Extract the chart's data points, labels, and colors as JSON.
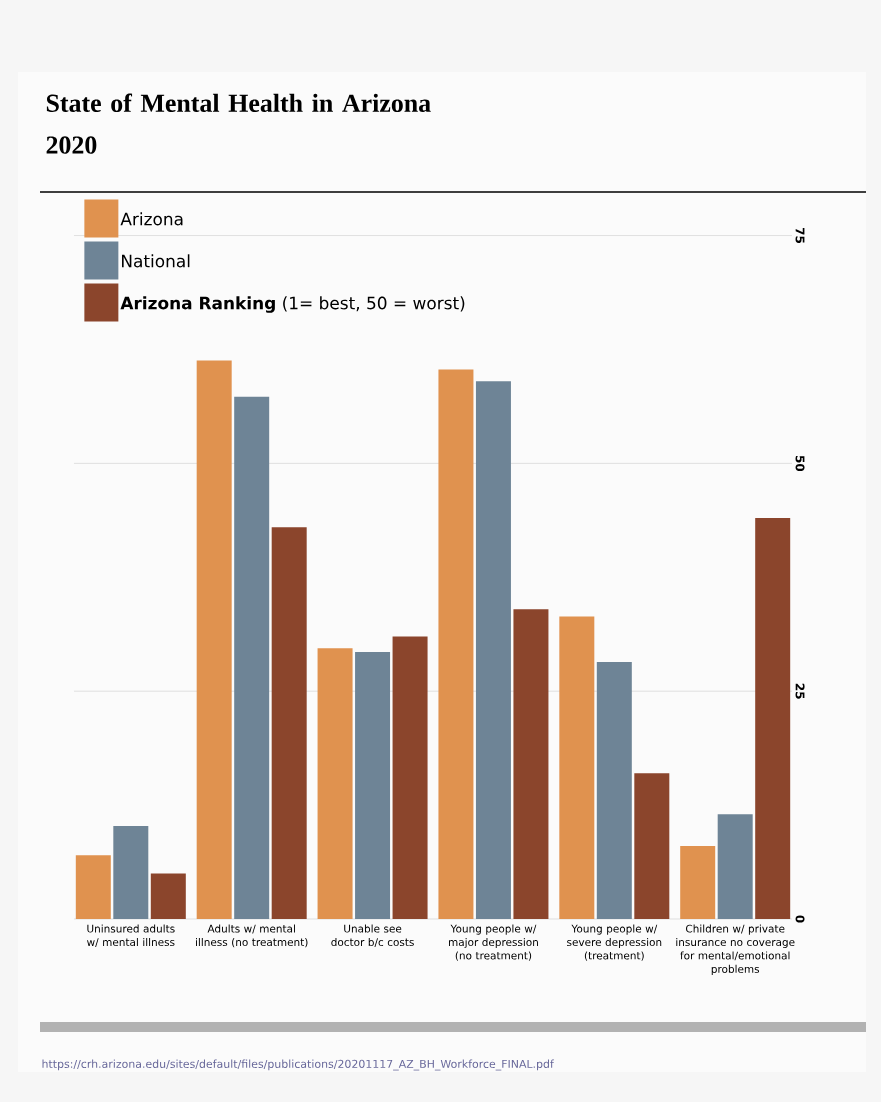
{
  "chart_data": {
    "type": "bar",
    "title": "State of Mental Health in Arizona 2020",
    "categories": [
      "Uninsured adults w/ mental illness",
      "Adults w/ mental illness (no treatment)",
      "Unable see doctor b/c costs",
      "Young people w/ major depression (no treatment)",
      "Young people w/ severe depression (treatment)",
      "Children w/ private insurance no coverage for mental/emotional problems"
    ],
    "series": [
      {
        "name": "Arizona",
        "color": "#e0924f",
        "values": [
          7,
          61.3,
          29.7,
          60.3,
          33.2,
          8
        ]
      },
      {
        "name": "National",
        "color": "#6e8496",
        "values": [
          10.2,
          57.3,
          29.3,
          59,
          28.2,
          11.5
        ]
      },
      {
        "name": "**Arizona Ranking** (1= best, 50 = worst)",
        "color": "#8b452c",
        "values": [
          5,
          43,
          31,
          34,
          16,
          44
        ]
      }
    ],
    "ylim": [
      0,
      80
    ],
    "yticks": [
      0,
      25,
      50,
      75
    ],
    "grid": "y",
    "legend": "top left",
    "annotations": [
      "https://crh.arizona.edu/sites/default/files/publications/20201117_AZ_BH_Workforce_FINAL.pdf"
    ]
  }
}
